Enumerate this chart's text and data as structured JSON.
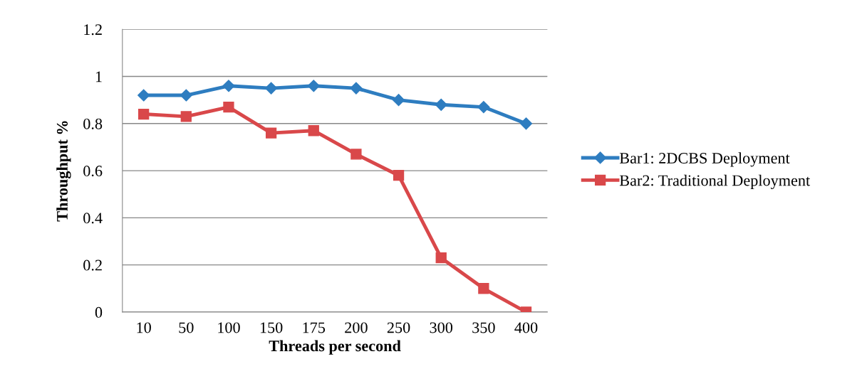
{
  "chart_data": {
    "type": "line",
    "xlabel": "Threads per second",
    "ylabel": "Throughput %",
    "categories": [
      "10",
      "50",
      "100",
      "150",
      "175",
      "200",
      "250",
      "300",
      "350",
      "400"
    ],
    "series": [
      {
        "name": "Bar1: 2DCBS Deployment",
        "color": "#2e7dc0",
        "marker": "diamond",
        "values": [
          0.92,
          0.92,
          0.96,
          0.95,
          0.96,
          0.95,
          0.9,
          0.88,
          0.87,
          0.8
        ]
      },
      {
        "name": "Bar2: Traditional Deployment",
        "color": "#d9484a",
        "marker": "square",
        "values": [
          0.84,
          0.83,
          0.87,
          0.76,
          0.77,
          0.67,
          0.58,
          0.23,
          0.1,
          0.0
        ]
      }
    ],
    "ylim": [
      0,
      1.2
    ],
    "yticks": [
      0,
      0.2,
      0.4,
      0.6,
      0.8,
      1,
      1.2
    ],
    "grid": "y",
    "legend": "right",
    "line_style": "solid"
  }
}
